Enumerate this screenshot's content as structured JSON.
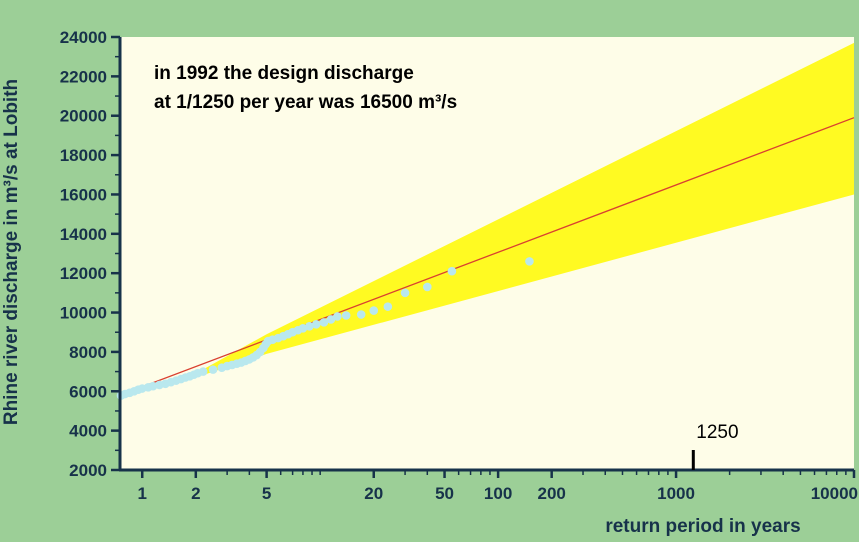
{
  "chart_data": {
    "type": "scatter",
    "title": "",
    "annotation_lines": [
      "in 1992 the design discharge",
      "at 1/1250 per year was 16500 m³/s"
    ],
    "xlabel": "return period in years",
    "ylabel": "Rhine river discharge in m³/s at Lobith",
    "x_scale": "log",
    "xlim": [
      0.75,
      10000
    ],
    "ylim": [
      2000,
      24000
    ],
    "x_ticks": [
      1,
      2,
      5,
      20,
      50,
      100,
      200,
      1000,
      10000
    ],
    "y_ticks": [
      2000,
      4000,
      6000,
      8000,
      10000,
      12000,
      14000,
      16000,
      18000,
      20000,
      22000,
      24000
    ],
    "grid": false,
    "marker": {
      "x": 1250,
      "label": "1250"
    },
    "series": [
      {
        "type": "line",
        "points": [
          [
            0.75,
            5800
          ],
          [
            10000,
            19900
          ]
        ]
      },
      {
        "type": "area",
        "upper": [
          [
            2,
            6900
          ],
          [
            5,
            8900
          ],
          [
            10000,
            23700
          ]
        ],
        "lower": [
          [
            2,
            6700
          ],
          [
            5,
            7900
          ],
          [
            10000,
            16000
          ]
        ]
      },
      {
        "type": "scatter",
        "points": [
          [
            0.76,
            5780
          ],
          [
            0.8,
            5860
          ],
          [
            0.85,
            5920
          ],
          [
            0.9,
            6000
          ],
          [
            0.95,
            6080
          ],
          [
            1.0,
            6140
          ],
          [
            1.08,
            6200
          ],
          [
            1.15,
            6260
          ],
          [
            1.25,
            6320
          ],
          [
            1.35,
            6380
          ],
          [
            1.45,
            6460
          ],
          [
            1.55,
            6540
          ],
          [
            1.65,
            6620
          ],
          [
            1.75,
            6700
          ],
          [
            1.85,
            6760
          ],
          [
            1.95,
            6840
          ],
          [
            2.05,
            6920
          ],
          [
            2.2,
            7000
          ],
          [
            2.5,
            7100
          ],
          [
            2.8,
            7200
          ],
          [
            3.0,
            7280
          ],
          [
            3.2,
            7340
          ],
          [
            3.4,
            7400
          ],
          [
            3.6,
            7460
          ],
          [
            3.8,
            7540
          ],
          [
            4.0,
            7620
          ],
          [
            4.2,
            7720
          ],
          [
            4.4,
            7840
          ],
          [
            4.6,
            8000
          ],
          [
            4.8,
            8200
          ],
          [
            4.95,
            8400
          ],
          [
            5.1,
            8550
          ],
          [
            5.4,
            8620
          ],
          [
            5.8,
            8700
          ],
          [
            6.2,
            8800
          ],
          [
            6.6,
            8900
          ],
          [
            7.0,
            9000
          ],
          [
            7.5,
            9100
          ],
          [
            8.0,
            9200
          ],
          [
            8.7,
            9300
          ],
          [
            9.5,
            9400
          ],
          [
            10.5,
            9500
          ],
          [
            11.5,
            9650
          ],
          [
            12.5,
            9800
          ],
          [
            14,
            9850
          ],
          [
            17,
            9900
          ],
          [
            20,
            10100
          ],
          [
            24,
            10300
          ],
          [
            30,
            11000
          ],
          [
            40,
            11300
          ],
          [
            55,
            12100
          ],
          [
            150,
            12600
          ]
        ]
      }
    ]
  },
  "colors": {
    "page_background": "#9ccf97",
    "plot_background": "#fefde8",
    "band": "#fffa22",
    "trend_line": "#d94030",
    "points": "#b9e8ee",
    "axis": "#17324a"
  }
}
